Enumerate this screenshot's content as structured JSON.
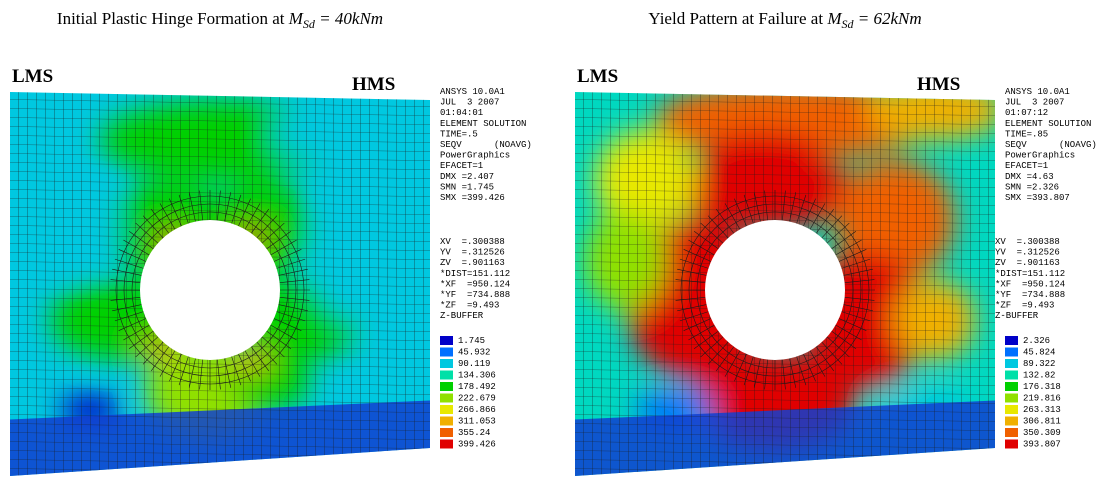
{
  "panels": [
    {
      "title": {
        "prefix": "Initial Plastic Hinge Formation at ",
        "symbol": "M",
        "subscript": "Sd",
        "suffix": " = 40kNm"
      },
      "left_label": "LMS",
      "right_label": "HMS",
      "info": [
        "ANSYS 10.0A1",
        "JUL  3 2007",
        "01:04:01",
        "ELEMENT SOLUTION",
        "TIME=.5",
        "SEQV      (NOAVG)",
        "PowerGraphics",
        "EFACET=1",
        "DMX =2.407",
        "SMN =1.745",
        "SMX =399.426"
      ],
      "view": [
        "XV  =.300388",
        "YV  =.312526",
        "ZV  =.901163",
        "*DIST=151.112",
        "*XF  =950.124",
        "*YF  =734.888",
        "*ZF  =9.493",
        "Z-BUFFER"
      ],
      "legend": [
        "1.745",
        "45.932",
        "90.119",
        "134.306",
        "178.492",
        "222.679",
        "266.866",
        "311.053",
        "355.24",
        "399.426"
      ]
    },
    {
      "title": {
        "prefix": "Yield Pattern at Failure at ",
        "symbol": "M",
        "subscript": "Sd",
        "suffix": " = 62kNm"
      },
      "left_label": "LMS",
      "right_label": "HMS",
      "info": [
        "ANSYS 10.0A1",
        "JUL  3 2007",
        "01:07:12",
        "ELEMENT SOLUTION",
        "TIME=.85",
        "SEQV      (NOAVG)",
        "PowerGraphics",
        "EFACET=1",
        "DMX =4.63",
        "SMN =2.326",
        "SMX =393.807"
      ],
      "view": [
        "XV  =.300388",
        "YV  =.312526",
        "ZV  =.901163",
        "*DIST=151.112",
        "*XF  =950.124",
        "*YF  =734.888",
        "*ZF  =9.493",
        "Z-BUFFER"
      ],
      "legend": [
        "2.326",
        "45.824",
        "89.322",
        "132.82",
        "176.318",
        "219.816",
        "263.313",
        "306.811",
        "350.309",
        "393.807"
      ]
    }
  ]
}
